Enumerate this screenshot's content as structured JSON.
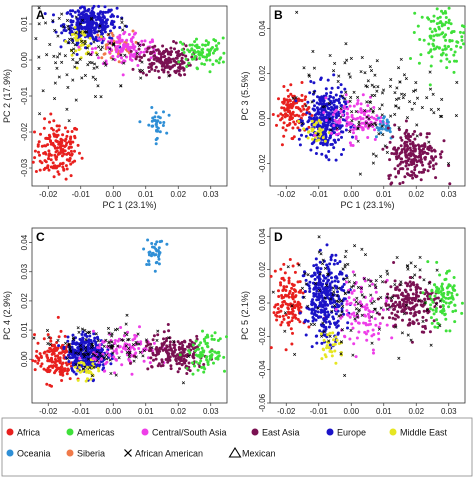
{
  "colors": {
    "Africa": "#e8201e",
    "Americas": "#3fe03a",
    "Central/South Asia": "#ee3ee8",
    "East Asia": "#7a1152",
    "Europe": "#1b13c8",
    "Middle East": "#e6e622",
    "Oceania": "#2f8fd6",
    "Siberia": "#f07a4a",
    "African American": "#000000",
    "Mexican": "#000000"
  },
  "legend": {
    "items": [
      {
        "label": "Africa",
        "marker": "circle",
        "color_key": "Africa"
      },
      {
        "label": "Americas",
        "marker": "circle",
        "color_key": "Americas"
      },
      {
        "label": "Central/South  Asia",
        "marker": "circle",
        "color_key": "Central/South Asia"
      },
      {
        "label": "East Asia",
        "marker": "circle",
        "color_key": "East Asia"
      },
      {
        "label": "Europe",
        "marker": "circle",
        "color_key": "Europe"
      },
      {
        "label": "Middle East",
        "marker": "circle",
        "color_key": "Middle East"
      },
      {
        "label": "Oceania",
        "marker": "circle",
        "color_key": "Oceania"
      },
      {
        "label": "Siberia",
        "marker": "circle",
        "color_key": "Siberia"
      },
      {
        "label": "African American",
        "marker": "cross",
        "color_key": "African American"
      },
      {
        "label": "Mexican",
        "marker": "triangle",
        "color_key": "Mexican"
      }
    ]
  },
  "chart_data": [
    {
      "panel": "A",
      "type": "scatter",
      "xlabel": "PC 1 (23.1%)",
      "ylabel": "PC 2 (17.9%)",
      "xlim": [
        -0.025,
        0.035
      ],
      "ylim": [
        -0.035,
        0.015
      ],
      "xticks": [
        -0.02,
        -0.01,
        0.0,
        0.01,
        0.02,
        0.03
      ],
      "xtick_labels": [
        "-0.02",
        "-0.01",
        "0.00",
        "0.01",
        "0.02",
        "0.03"
      ],
      "yticks": [
        -0.03,
        -0.02,
        -0.01,
        0.0,
        0.01
      ],
      "ytick_labels": [
        "-0.03",
        "-0.02",
        "-0.01",
        "0.00",
        "0.01"
      ],
      "clusters": [
        {
          "group": "Africa",
          "center": [
            -0.017,
            -0.025
          ],
          "spread": [
            0.0035,
            0.004
          ],
          "n": 170
        },
        {
          "group": "Europe",
          "center": [
            -0.007,
            0.01
          ],
          "spread": [
            0.004,
            0.0025
          ],
          "n": 330
        },
        {
          "group": "Middle East",
          "center": [
            -0.01,
            0.005
          ],
          "spread": [
            0.002,
            0.0018
          ],
          "n": 40
        },
        {
          "group": "Siberia",
          "center": [
            0.0,
            0.004
          ],
          "spread": [
            0.003,
            0.002
          ],
          "n": 40
        },
        {
          "group": "Central/South Asia",
          "center": [
            0.004,
            0.003
          ],
          "spread": [
            0.005,
            0.0025
          ],
          "n": 120
        },
        {
          "group": "East Asia",
          "center": [
            0.016,
            0.0
          ],
          "spread": [
            0.004,
            0.0022
          ],
          "n": 170
        },
        {
          "group": "Americas",
          "center": [
            0.028,
            0.002
          ],
          "spread": [
            0.0035,
            0.002
          ],
          "n": 90
        },
        {
          "group": "Oceania",
          "center": [
            0.013,
            -0.018
          ],
          "spread": [
            0.0016,
            0.0022
          ],
          "n": 35
        },
        {
          "group": "African American",
          "center": [
            -0.009,
            0.002
          ],
          "spread": [
            0.01,
            0.006
          ],
          "n": 120
        }
      ]
    },
    {
      "panel": "B",
      "type": "scatter",
      "xlabel": "PC 1 (23.1%)",
      "ylabel": "PC 3 (5.5%)",
      "xlim": [
        -0.025,
        0.035
      ],
      "ylim": [
        -0.03,
        0.05
      ],
      "xticks": [
        -0.02,
        -0.01,
        0.0,
        0.01,
        0.02,
        0.03
      ],
      "xtick_labels": [
        "-0.02",
        "-0.01",
        "0.00",
        "0.01",
        "0.02",
        "0.03"
      ],
      "yticks": [
        -0.02,
        0.0,
        0.02,
        0.04
      ],
      "ytick_labels": [
        "-0.02",
        "0.00",
        "0.02",
        "0.04"
      ],
      "clusters": [
        {
          "group": "Africa",
          "center": [
            -0.018,
            0.003
          ],
          "spread": [
            0.0025,
            0.005
          ],
          "n": 120
        },
        {
          "group": "Europe",
          "center": [
            -0.008,
            -0.001
          ],
          "spread": [
            0.003,
            0.007
          ],
          "n": 330
        },
        {
          "group": "Middle East",
          "center": [
            -0.011,
            -0.006
          ],
          "spread": [
            0.002,
            0.003
          ],
          "n": 30
        },
        {
          "group": "Central/South Asia",
          "center": [
            0.002,
            0.0
          ],
          "spread": [
            0.004,
            0.005
          ],
          "n": 110
        },
        {
          "group": "Oceania",
          "center": [
            0.01,
            -0.003
          ],
          "spread": [
            0.002,
            0.003
          ],
          "n": 30
        },
        {
          "group": "East Asia",
          "center": [
            0.019,
            -0.016
          ],
          "spread": [
            0.004,
            0.006
          ],
          "n": 220
        },
        {
          "group": "Americas",
          "center": [
            0.028,
            0.036
          ],
          "spread": [
            0.0035,
            0.007
          ],
          "n": 110
        },
        {
          "group": "African American",
          "center": [
            0.005,
            0.008
          ],
          "spread": [
            0.011,
            0.011
          ],
          "n": 140
        }
      ]
    },
    {
      "panel": "C",
      "type": "scatter",
      "xlabel": "PC 1 (23.1%)",
      "ylabel": "PC 4 (2.9%)",
      "xlim": [
        -0.025,
        0.035
      ],
      "ylim": [
        -0.015,
        0.045
      ],
      "xticks": [
        -0.02,
        -0.01,
        0.0,
        0.01,
        0.02,
        0.03
      ],
      "xtick_labels": [
        "-0.02",
        "-0.01",
        "0.00",
        "0.01",
        "0.02",
        "0.03"
      ],
      "yticks": [
        0.0,
        0.01,
        0.02,
        0.03,
        0.04
      ],
      "ytick_labels": [
        "0.00",
        "0.01",
        "0.02",
        "0.03",
        "0.04"
      ],
      "clusters": [
        {
          "group": "Africa",
          "center": [
            -0.018,
            0.0
          ],
          "spread": [
            0.003,
            0.004
          ],
          "n": 150
        },
        {
          "group": "Europe",
          "center": [
            -0.008,
            0.002
          ],
          "spread": [
            0.003,
            0.003
          ],
          "n": 330
        },
        {
          "group": "Middle East",
          "center": [
            -0.008,
            -0.004
          ],
          "spread": [
            0.002,
            0.002
          ],
          "n": 30
        },
        {
          "group": "Central/South Asia",
          "center": [
            0.004,
            0.003
          ],
          "spread": [
            0.005,
            0.003
          ],
          "n": 110
        },
        {
          "group": "East Asia",
          "center": [
            0.019,
            0.002
          ],
          "spread": [
            0.005,
            0.003
          ],
          "n": 190
        },
        {
          "group": "Americas",
          "center": [
            0.029,
            0.002
          ],
          "spread": [
            0.003,
            0.003
          ],
          "n": 90
        },
        {
          "group": "Oceania",
          "center": [
            0.013,
            0.036
          ],
          "spread": [
            0.0015,
            0.0025
          ],
          "n": 35
        },
        {
          "group": "African American",
          "center": [
            -0.004,
            0.004
          ],
          "spread": [
            0.01,
            0.004
          ],
          "n": 120
        }
      ]
    },
    {
      "panel": "D",
      "type": "scatter",
      "xlabel": "PC 1 (23.1%)",
      "ylabel": "PC 5 (2.1%)",
      "xlim": [
        -0.025,
        0.035
      ],
      "ylim": [
        -0.06,
        0.045
      ],
      "xticks": [
        -0.02,
        -0.01,
        0.0,
        0.01,
        0.02,
        0.03
      ],
      "xtick_labels": [
        "-0.02",
        "-0.01",
        "0.00",
        "0.01",
        "0.02",
        "0.03"
      ],
      "yticks": [
        -0.06,
        -0.04,
        -0.02,
        0.0,
        0.02,
        0.04
      ],
      "ytick_labels": [
        "-0.06",
        "-0.04",
        "-0.02",
        "0.00",
        "0.02",
        "0.04"
      ],
      "clusters": [
        {
          "group": "Africa",
          "center": [
            -0.019,
            0.0
          ],
          "spread": [
            0.0025,
            0.01
          ],
          "n": 140
        },
        {
          "group": "Europe",
          "center": [
            -0.008,
            0.002
          ],
          "spread": [
            0.003,
            0.012
          ],
          "n": 320
        },
        {
          "group": "Middle East",
          "center": [
            -0.006,
            -0.025
          ],
          "spread": [
            0.002,
            0.005
          ],
          "n": 30
        },
        {
          "group": "Central/South Asia",
          "center": [
            0.004,
            -0.005
          ],
          "spread": [
            0.004,
            0.01
          ],
          "n": 100
        },
        {
          "group": "East Asia",
          "center": [
            0.018,
            0.0
          ],
          "spread": [
            0.004,
            0.008
          ],
          "n": 190
        },
        {
          "group": "Americas",
          "center": [
            0.028,
            0.002
          ],
          "spread": [
            0.003,
            0.008
          ],
          "n": 100
        },
        {
          "group": "African American",
          "center": [
            0.002,
            0.003
          ],
          "spread": [
            0.012,
            0.014
          ],
          "n": 150
        }
      ]
    }
  ]
}
